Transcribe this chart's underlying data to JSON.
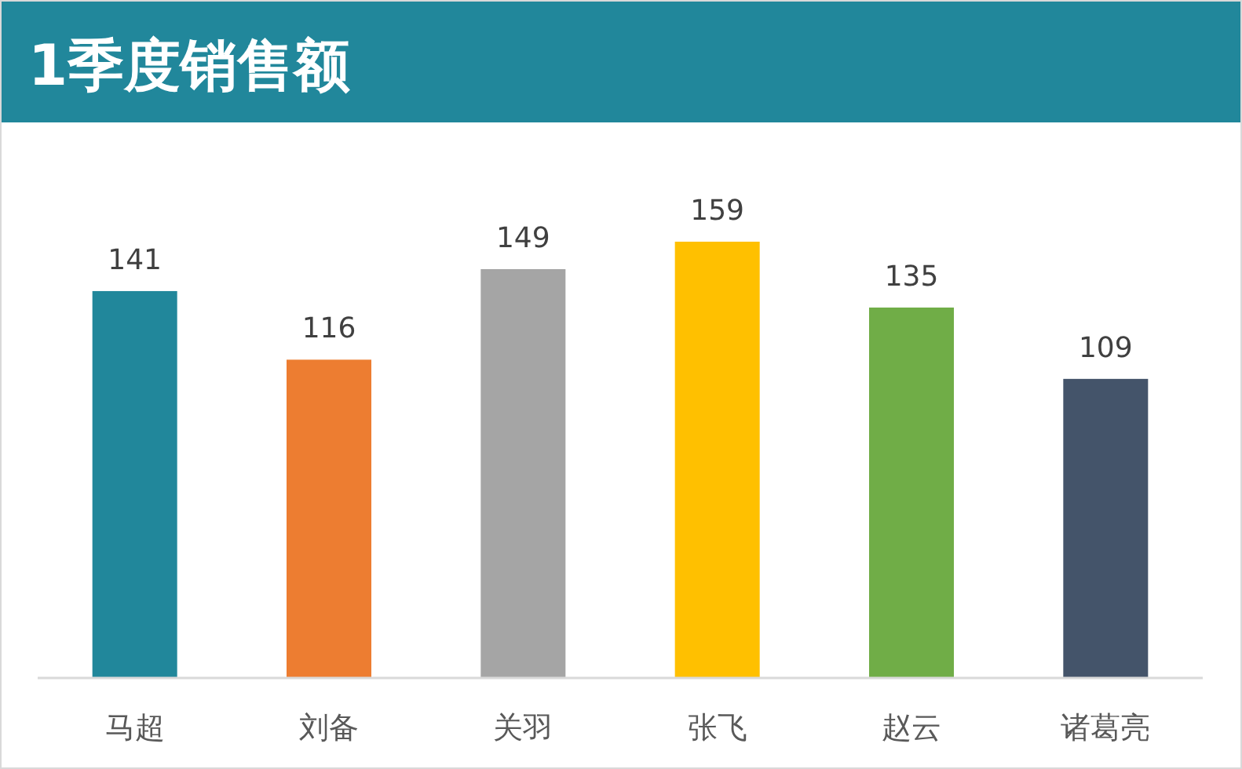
{
  "chart_data": {
    "type": "bar",
    "title": "1季度销售额",
    "categories": [
      "马超",
      "刘备",
      "关羽",
      "张飞",
      "赵云",
      "诸葛亮"
    ],
    "values": [
      141,
      116,
      149,
      159,
      135,
      109
    ],
    "colors": [
      "#21879b",
      "#ed7d31",
      "#a5a5a5",
      "#ffc000",
      "#70ad47",
      "#44546a"
    ],
    "data_labels": true
  }
}
